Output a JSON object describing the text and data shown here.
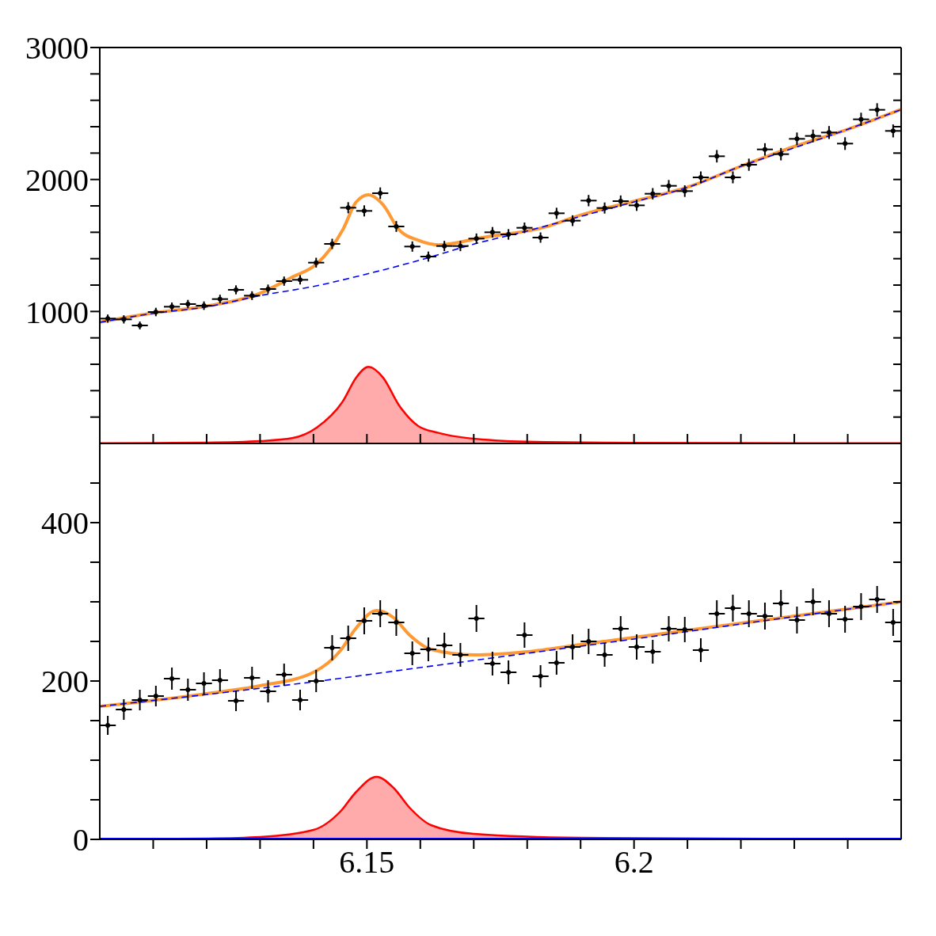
{
  "chart_data": [
    {
      "type": "scatter",
      "xlim": [
        6.1,
        6.25
      ],
      "ylim": [
        0,
        3000
      ],
      "tick_labels": "y",
      "xticks": [
        {
          "value": 6.11,
          "label": null
        },
        {
          "value": 6.12,
          "label": null
        },
        {
          "value": 6.13,
          "label": null
        },
        {
          "value": 6.14,
          "label": null
        },
        {
          "value": 6.15,
          "label": null
        },
        {
          "value": 6.16,
          "label": null
        },
        {
          "value": 6.17,
          "label": null
        },
        {
          "value": 6.18,
          "label": null
        },
        {
          "value": 6.19,
          "label": null
        },
        {
          "value": 6.2,
          "label": null
        },
        {
          "value": 6.21,
          "label": null
        },
        {
          "value": 6.22,
          "label": null
        },
        {
          "value": 6.23,
          "label": null
        },
        {
          "value": 6.24,
          "label": null
        }
      ],
      "yticks": [
        {
          "value": 200,
          "label": null
        },
        {
          "value": 400,
          "label": null
        },
        {
          "value": 600,
          "label": null
        },
        {
          "value": 800,
          "label": null
        },
        1000,
        {
          "value": 1200,
          "label": null
        },
        {
          "value": 1400,
          "label": null
        },
        {
          "value": 1600,
          "label": null
        },
        {
          "value": 1800,
          "label": null
        },
        2000,
        {
          "value": 2200,
          "label": null
        },
        {
          "value": 2400,
          "label": null
        },
        {
          "value": 2600,
          "label": null
        },
        {
          "value": 2800,
          "label": null
        },
        3000
      ],
      "series": [
        {
          "type": "area",
          "color": "#ff0000",
          "x": [
            6.1,
            6.11,
            6.12,
            6.13,
            6.136,
            6.1406,
            6.1455,
            6.148,
            6.1503,
            6.153,
            6.156,
            6.1596,
            6.1634,
            6.1716,
            6.1834,
            6.2,
            6.22,
            6.25
          ],
          "values": [
            1,
            3,
            6,
            18,
            40,
            120,
            320,
            500,
            580,
            500,
            290,
            132,
            80,
            30,
            10,
            5,
            3,
            1
          ]
        },
        {
          "type": "line",
          "color": "#ff9933",
          "line_style": "solid",
          "x": [
            6.1,
            6.11,
            6.12,
            6.13,
            6.136,
            6.1406,
            6.1455,
            6.148,
            6.1503,
            6.153,
            6.156,
            6.1596,
            6.1634,
            6.1716,
            6.1834,
            6.19,
            6.2,
            6.21,
            6.22,
            6.23,
            6.24,
            6.25
          ],
          "values": [
            919,
            988,
            1041,
            1138,
            1260,
            1360,
            1620,
            1830,
            1884,
            1810,
            1620,
            1540,
            1505,
            1560,
            1640,
            1730,
            1835,
            1942,
            2100,
            2250,
            2380,
            2531
          ]
        },
        {
          "type": "line",
          "color": "#0000ff",
          "line_style": "dashed",
          "x": [
            6.1,
            6.11,
            6.12,
            6.13,
            6.14,
            6.15,
            6.16,
            6.17,
            6.18,
            6.19,
            6.2,
            6.21,
            6.22,
            6.23,
            6.24,
            6.25
          ],
          "values": [
            918,
            985,
            1035,
            1120,
            1190,
            1284,
            1390,
            1510,
            1610,
            1720,
            1830,
            1940,
            2100,
            2240,
            2380,
            2530
          ]
        },
        {
          "type": "scatter",
          "color": "#000000",
          "marker": "circle",
          "x": [
            6.1015,
            6.1045,
            6.1075,
            6.1105,
            6.1135,
            6.1165,
            6.1195,
            6.1225,
            6.1255,
            6.1285,
            6.1315,
            6.1345,
            6.1375,
            6.1405,
            6.1435,
            6.1465,
            6.1495,
            6.1525,
            6.1555,
            6.1585,
            6.1615,
            6.1645,
            6.1675,
            6.1705,
            6.1735,
            6.1765,
            6.1795,
            6.1825,
            6.1855,
            6.1885,
            6.1915,
            6.1945,
            6.1975,
            6.2005,
            6.2035,
            6.2065,
            6.2095,
            6.2125,
            6.2155,
            6.2185,
            6.2215,
            6.2245,
            6.2275,
            6.2305,
            6.2335,
            6.2365,
            6.2395,
            6.2425,
            6.2455,
            6.2485
          ],
          "values": [
            946,
            940,
            894,
            996,
            1036,
            1056,
            1044,
            1094,
            1164,
            1120,
            1170,
            1230,
            1240,
            1370,
            1512,
            1786,
            1762,
            1896,
            1644,
            1492,
            1416,
            1496,
            1496,
            1552,
            1600,
            1584,
            1634,
            1560,
            1744,
            1688,
            1840,
            1784,
            1836,
            1804,
            1892,
            1952,
            1912,
            2016,
            2176,
            2016,
            2112,
            2228,
            2192,
            2308,
            2330,
            2356,
            2272,
            2456,
            2528,
            2368
          ],
          "errors": [
            31,
            31,
            30,
            32,
            32,
            32,
            32,
            33,
            34,
            33,
            34,
            35,
            35,
            37,
            39,
            42,
            42,
            44,
            41,
            39,
            38,
            39,
            39,
            39,
            40,
            40,
            40,
            39,
            42,
            41,
            43,
            42,
            43,
            42,
            43,
            44,
            44,
            45,
            47,
            45,
            46,
            47,
            47,
            48,
            48,
            49,
            48,
            50,
            50,
            49
          ],
          "xerrors": [
            0.0015,
            0.0015,
            0.0015,
            0.0015,
            0.0015,
            0.0015,
            0.0015,
            0.0015,
            0.0015,
            0.0015,
            0.0015,
            0.0015,
            0.0015,
            0.0015,
            0.0015,
            0.0015,
            0.0015,
            0.0015,
            0.0015,
            0.0015,
            0.0015,
            0.0015,
            0.0015,
            0.0015,
            0.0015,
            0.0015,
            0.0015,
            0.0015,
            0.0015,
            0.0015,
            0.0015,
            0.0015,
            0.0015,
            0.0015,
            0.0015,
            0.0015,
            0.0015,
            0.0015,
            0.0015,
            0.0015,
            0.0015,
            0.0015,
            0.0015,
            0.0015,
            0.0015,
            0.0015,
            0.0015,
            0.0015,
            0.0015,
            0.0015
          ]
        }
      ]
    },
    {
      "type": "scatter",
      "xlim": [
        6.1,
        6.25
      ],
      "ylim": [
        0,
        500
      ],
      "xticks": [
        {
          "value": 6.11,
          "label": null
        },
        {
          "value": 6.12,
          "label": null
        },
        {
          "value": 6.13,
          "label": null
        },
        {
          "value": 6.14,
          "label": null
        },
        {
          "value": 6.15,
          "label": "6.15"
        },
        {
          "value": 6.16,
          "label": null
        },
        {
          "value": 6.17,
          "label": null
        },
        {
          "value": 6.18,
          "label": null
        },
        {
          "value": 6.19,
          "label": null
        },
        {
          "value": 6.2,
          "label": "6.2"
        },
        {
          "value": 6.21,
          "label": null
        },
        {
          "value": 6.22,
          "label": null
        },
        {
          "value": 6.23,
          "label": null
        },
        {
          "value": 6.24,
          "label": null
        }
      ],
      "yticks": [
        0,
        {
          "value": 50,
          "label": null
        },
        {
          "value": 100,
          "label": null
        },
        {
          "value": 150,
          "label": null
        },
        200,
        {
          "value": 250,
          "label": null
        },
        {
          "value": 300,
          "label": null
        },
        {
          "value": 350,
          "label": null
        },
        400,
        {
          "value": 450,
          "label": null
        }
      ],
      "series": [
        {
          "type": "area",
          "color": "#ff0000",
          "x": [
            6.1,
            6.12,
            6.13,
            6.14,
            6.145,
            6.148,
            6.1518,
            6.155,
            6.158,
            6.162,
            6.17,
            6.19,
            6.25
          ],
          "values": [
            0,
            1,
            3,
            12,
            35,
            60,
            79,
            65,
            40,
            18,
            7,
            2,
            0
          ]
        },
        {
          "type": "line",
          "color": "#0000ff",
          "line_style": "solid",
          "x": [
            6.1,
            6.25
          ],
          "values": [
            0,
            0
          ]
        },
        {
          "type": "line",
          "color": "#ff9933",
          "line_style": "solid",
          "x": [
            6.1,
            6.12,
            6.13,
            6.14,
            6.145,
            6.148,
            6.1518,
            6.155,
            6.158,
            6.162,
            6.17,
            6.18,
            6.19,
            6.2,
            6.22,
            6.25
          ],
          "values": [
            168,
            184,
            194,
            211,
            238,
            267,
            289,
            280,
            258,
            240,
            233,
            237,
            246,
            255,
            273,
            300
          ]
        },
        {
          "type": "line",
          "color": "#0000ff",
          "line_style": "dashed",
          "x": [
            6.1,
            6.12,
            6.14,
            6.16,
            6.18,
            6.2,
            6.22,
            6.25
          ],
          "values": [
            168,
            183,
            199,
            217,
            235,
            253,
            272,
            300
          ]
        },
        {
          "type": "scatter",
          "color": "#000000",
          "marker": "circle",
          "x": [
            6.1015,
            6.1045,
            6.1075,
            6.1105,
            6.1135,
            6.1165,
            6.1195,
            6.1225,
            6.1255,
            6.1285,
            6.1315,
            6.1345,
            6.1375,
            6.1405,
            6.1435,
            6.1465,
            6.1495,
            6.1525,
            6.1555,
            6.1585,
            6.1615,
            6.1645,
            6.1675,
            6.1705,
            6.1735,
            6.1765,
            6.1795,
            6.1825,
            6.1855,
            6.1885,
            6.1915,
            6.1945,
            6.1975,
            6.2005,
            6.2035,
            6.2065,
            6.2095,
            6.2125,
            6.2155,
            6.2185,
            6.2215,
            6.2245,
            6.2275,
            6.2305,
            6.2335,
            6.2365,
            6.2395,
            6.2425,
            6.2455,
            6.2485
          ],
          "values": [
            144,
            164,
            176,
            181,
            203,
            189,
            197,
            201,
            175,
            204,
            187,
            208,
            176,
            200,
            242,
            254,
            276,
            285,
            274,
            235,
            240,
            245,
            233,
            279,
            222,
            211,
            258,
            206,
            223,
            243,
            250,
            233,
            266,
            243,
            237,
            266,
            265,
            239,
            285,
            292,
            285,
            282,
            298,
            277,
            300,
            285,
            278,
            294,
            303,
            274
          ],
          "errors": [
            12,
            13,
            13,
            13,
            14,
            14,
            14,
            14,
            13,
            14,
            14,
            14,
            13,
            14,
            16,
            16,
            17,
            17,
            17,
            15,
            15,
            16,
            15,
            17,
            15,
            15,
            16,
            14,
            15,
            16,
            16,
            15,
            16,
            16,
            15,
            16,
            16,
            15,
            17,
            17,
            17,
            17,
            17,
            17,
            17,
            17,
            17,
            17,
            17,
            17
          ],
          "xerrors": [
            0.0015,
            0.0015,
            0.0015,
            0.0015,
            0.0015,
            0.0015,
            0.0015,
            0.0015,
            0.0015,
            0.0015,
            0.0015,
            0.0015,
            0.0015,
            0.0015,
            0.0015,
            0.0015,
            0.0015,
            0.0015,
            0.0015,
            0.0015,
            0.0015,
            0.0015,
            0.0015,
            0.0015,
            0.0015,
            0.0015,
            0.0015,
            0.0015,
            0.0015,
            0.0015,
            0.0015,
            0.0015,
            0.0015,
            0.0015,
            0.0015,
            0.0015,
            0.0015,
            0.0015,
            0.0015,
            0.0015,
            0.0015,
            0.0015,
            0.0015,
            0.0015,
            0.0015,
            0.0015,
            0.0015,
            0.0015,
            0.0015,
            0.0015
          ]
        }
      ]
    }
  ]
}
